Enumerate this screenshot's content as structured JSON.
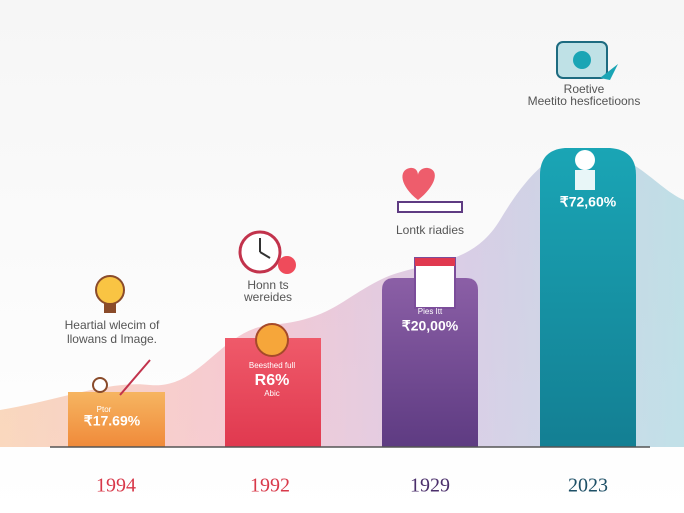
{
  "panels": [
    {
      "year": "1994",
      "value": "₹17.69%",
      "caption": [
        "Heartial wlecim of",
        "llowans d Image."
      ],
      "note": [
        "Ptor"
      ]
    },
    {
      "year": "1992",
      "value": "R6%",
      "caption": [
        "Honn ts",
        "wereides"
      ],
      "note": [
        "Beesthed full",
        "Abic"
      ]
    },
    {
      "year": "1929",
      "value": "₹20,00%",
      "caption": [
        "Lontk riadies"
      ],
      "note": [
        "Pies Itt"
      ]
    },
    {
      "year": "2023",
      "value": "₹72,60%",
      "caption": [
        "Roetive",
        "Meetito hesficetioons"
      ],
      "note": []
    }
  ]
}
